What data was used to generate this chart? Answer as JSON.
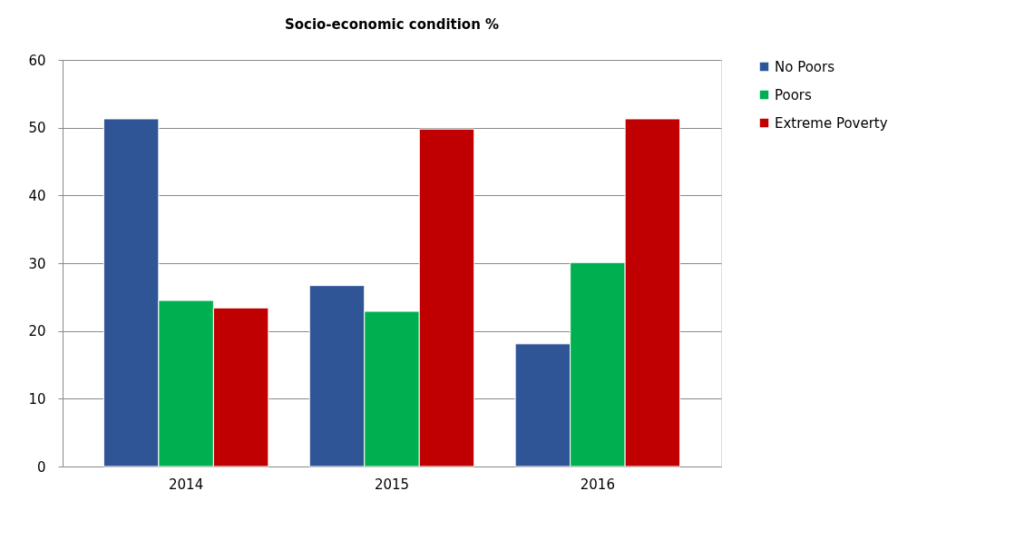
{
  "chart_data": {
    "type": "bar",
    "title": "Socio-economic condition %",
    "categories": [
      "2014",
      "2015",
      "2016"
    ],
    "series": [
      {
        "name": "No Poors",
        "color": "#2f5597",
        "values": [
          51.3,
          26.7,
          18.1
        ]
      },
      {
        "name": "Poors",
        "color": "#00b050",
        "values": [
          24.5,
          22.9,
          30.1
        ]
      },
      {
        "name": "Extreme Poverty",
        "color": "#c00000",
        "values": [
          23.4,
          49.8,
          51.3
        ]
      }
    ],
    "ylim": [
      0,
      60
    ],
    "yticks": [
      0,
      10,
      20,
      30,
      40,
      50,
      60
    ],
    "grid": "y",
    "legend": "right"
  }
}
